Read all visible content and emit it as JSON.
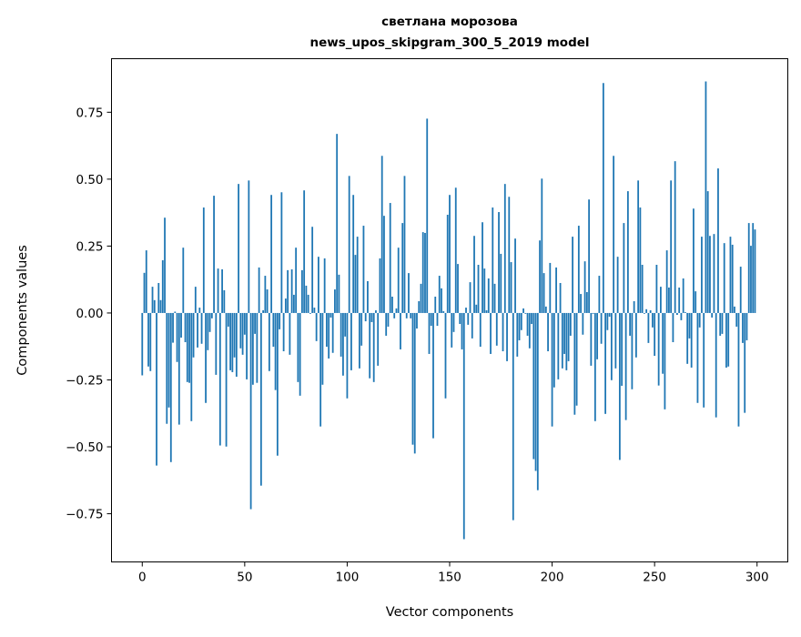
{
  "chart_data": {
    "type": "bar",
    "title": [
      "светлана морозова",
      "news_upos_skipgram_300_5_2019 model"
    ],
    "xlabel": "Vector components",
    "ylabel": "Components values",
    "xlim": [
      -15,
      315
    ],
    "ylim": [
      -0.93,
      0.95
    ],
    "xticks": [
      0,
      50,
      100,
      150,
      200,
      250,
      300
    ],
    "xtick_labels": [
      "0",
      "50",
      "100",
      "150",
      "200",
      "250",
      "300"
    ],
    "yticks": [
      -0.75,
      -0.5,
      -0.25,
      0,
      0.25,
      0.5,
      0.75
    ],
    "ytick_labels": [
      "−0.75",
      "−0.50",
      "−0.25",
      "0.00",
      "0.25",
      "0.50",
      "0.75"
    ],
    "grid": false,
    "bar_color": "#1f77b4",
    "values": [
      -0.233,
      0.15,
      0.234,
      -0.2,
      -0.217,
      0.098,
      0.048,
      -0.57,
      0.112,
      0.048,
      0.197,
      0.356,
      -0.414,
      -0.353,
      -0.557,
      -0.111,
      0.005,
      -0.183,
      -0.417,
      -0.092,
      0.244,
      -0.109,
      -0.258,
      -0.261,
      -0.404,
      -0.166,
      0.098,
      -0.129,
      0.02,
      -0.115,
      0.394,
      -0.336,
      -0.139,
      -0.071,
      -0.02,
      0.438,
      -0.231,
      0.166,
      -0.495,
      0.163,
      0.085,
      -0.499,
      -0.051,
      -0.214,
      -0.221,
      -0.166,
      -0.238,
      0.482,
      -0.132,
      -0.156,
      -0.081,
      -0.248,
      0.495,
      -0.733,
      -0.268,
      -0.078,
      -0.261,
      0.17,
      -0.645,
      0.01,
      0.139,
      0.088,
      -0.217,
      0.441,
      -0.126,
      -0.288,
      -0.533,
      -0.061,
      0.451,
      -0.143,
      0.054,
      0.16,
      -0.156,
      0.163,
      0.068,
      0.244,
      -0.258,
      -0.309,
      0.16,
      0.458,
      0.102,
      0.068,
      -0.003,
      0.322,
      0.02,
      -0.105,
      0.21,
      -0.424,
      -0.268,
      0.204,
      -0.126,
      -0.17,
      -0.017,
      -0.149,
      0.088,
      0.669,
      0.143,
      -0.163,
      -0.234,
      -0.088,
      -0.319,
      0.512,
      -0.214,
      0.441,
      0.217,
      0.285,
      -0.207,
      -0.122,
      0.326,
      -0.031,
      0.119,
      -0.244,
      -0.034,
      -0.258,
      0.01,
      -0.197,
      0.204,
      0.587,
      0.363,
      -0.085,
      -0.051,
      0.411,
      0.061,
      -0.02,
      0.017,
      0.244,
      -0.136,
      0.336,
      0.512,
      -0.02,
      0.149,
      -0.02,
      -0.492,
      -0.525,
      -0.058,
      0.044,
      0.109,
      0.302,
      0.299,
      0.726,
      -0.153,
      -0.048,
      -0.468,
      0.061,
      -0.048,
      0.139,
      0.092,
      0.007,
      -0.319,
      0.367,
      0.441,
      -0.129,
      -0.071,
      0.468,
      0.183,
      -0.041,
      -0.136,
      -0.845,
      0.02,
      -0.044,
      0.115,
      -0.095,
      0.288,
      0.031,
      0.18,
      -0.126,
      0.339,
      0.166,
      0.01,
      0.129,
      -0.153,
      0.394,
      0.109,
      -0.122,
      0.377,
      0.221,
      -0.143,
      0.482,
      -0.18,
      0.434,
      0.19,
      -0.774,
      0.278,
      -0.163,
      -0.102,
      -0.064,
      0.017,
      -0.003,
      -0.085,
      -0.132,
      -0.041,
      -0.546,
      -0.59,
      -0.662,
      0.271,
      0.502,
      0.149,
      0.024,
      -0.143,
      0.187,
      -0.424,
      -0.278,
      0.17,
      -0.248,
      0.112,
      -0.207,
      -0.153,
      -0.214,
      -0.18,
      -0.085,
      0.285,
      -0.38,
      -0.346,
      0.326,
      0.071,
      -0.081,
      0.193,
      0.078,
      0.424,
      -0.197,
      -0.003,
      -0.404,
      -0.173,
      0.139,
      -0.115,
      0.859,
      -0.377,
      -0.064,
      -0.014,
      -0.251,
      0.587,
      -0.207,
      0.21,
      -0.549,
      -0.272,
      0.336,
      -0.4,
      0.455,
      -0.085,
      -0.285,
      0.044,
      -0.166,
      0.495,
      0.394,
      0.18,
      -0.003,
      0.014,
      -0.112,
      0.01,
      -0.054,
      -0.16,
      0.18,
      -0.271,
      0.098,
      -0.227,
      -0.36,
      0.234,
      0.095,
      0.495,
      -0.109,
      0.567,
      -0.007,
      0.095,
      -0.027,
      0.129,
      0.003,
      -0.19,
      -0.095,
      -0.204,
      0.39,
      0.081,
      -0.336,
      -0.054,
      0.285,
      -0.353,
      0.865,
      0.455,
      0.288,
      -0.017,
      0.295,
      -0.39,
      0.54,
      -0.085,
      -0.078,
      0.261,
      -0.204,
      -0.2,
      0.285,
      0.255,
      0.024,
      -0.051,
      -0.424,
      0.173,
      -0.112,
      -0.373,
      -0.102,
      0.336,
      0.251,
      0.336,
      0.312
    ]
  }
}
